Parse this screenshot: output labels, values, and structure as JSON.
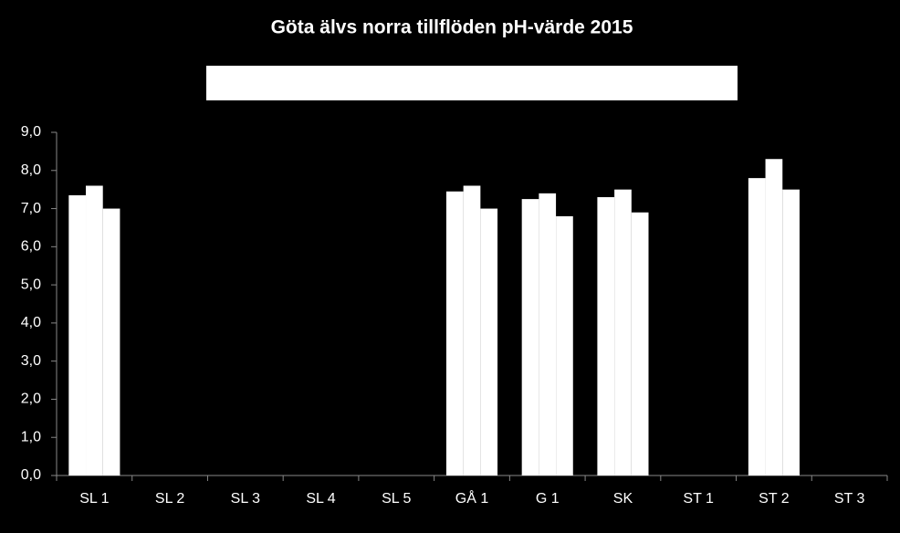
{
  "chart_data": {
    "type": "bar",
    "title": "Göta älvs norra tillflöden pH-värde 2015",
    "categories": [
      "SL 1",
      "SL 2",
      "SL 3",
      "SL 4",
      "SL 5",
      "GÅ 1",
      "G 1",
      "SK",
      "ST 1",
      "ST 2",
      "ST 3"
    ],
    "series": [
      {
        "color": "#ffffff",
        "values": [
          7.35,
          null,
          null,
          null,
          null,
          7.45,
          7.25,
          7.3,
          null,
          7.8,
          null
        ]
      },
      {
        "color": "#ffffff",
        "values": [
          7.6,
          null,
          null,
          null,
          null,
          7.6,
          7.4,
          7.5,
          null,
          8.3,
          null
        ]
      },
      {
        "color": "#ffffff",
        "values": [
          7.0,
          null,
          null,
          null,
          null,
          7.0,
          6.8,
          6.9,
          null,
          7.5,
          null
        ]
      }
    ],
    "ylim": [
      0,
      9
    ],
    "yticks": [
      {
        "value": 0,
        "label": "0,0"
      },
      {
        "value": 1,
        "label": "1,0"
      },
      {
        "value": 2,
        "label": "2,0"
      },
      {
        "value": 3,
        "label": "3,0"
      },
      {
        "value": 4,
        "label": "4,0"
      },
      {
        "value": 5,
        "label": "5,0"
      },
      {
        "value": 6,
        "label": "6,0"
      },
      {
        "value": 7,
        "label": "7,0"
      },
      {
        "value": 8,
        "label": "8,0"
      },
      {
        "value": 9,
        "label": "9,0"
      }
    ],
    "grid": false
  }
}
